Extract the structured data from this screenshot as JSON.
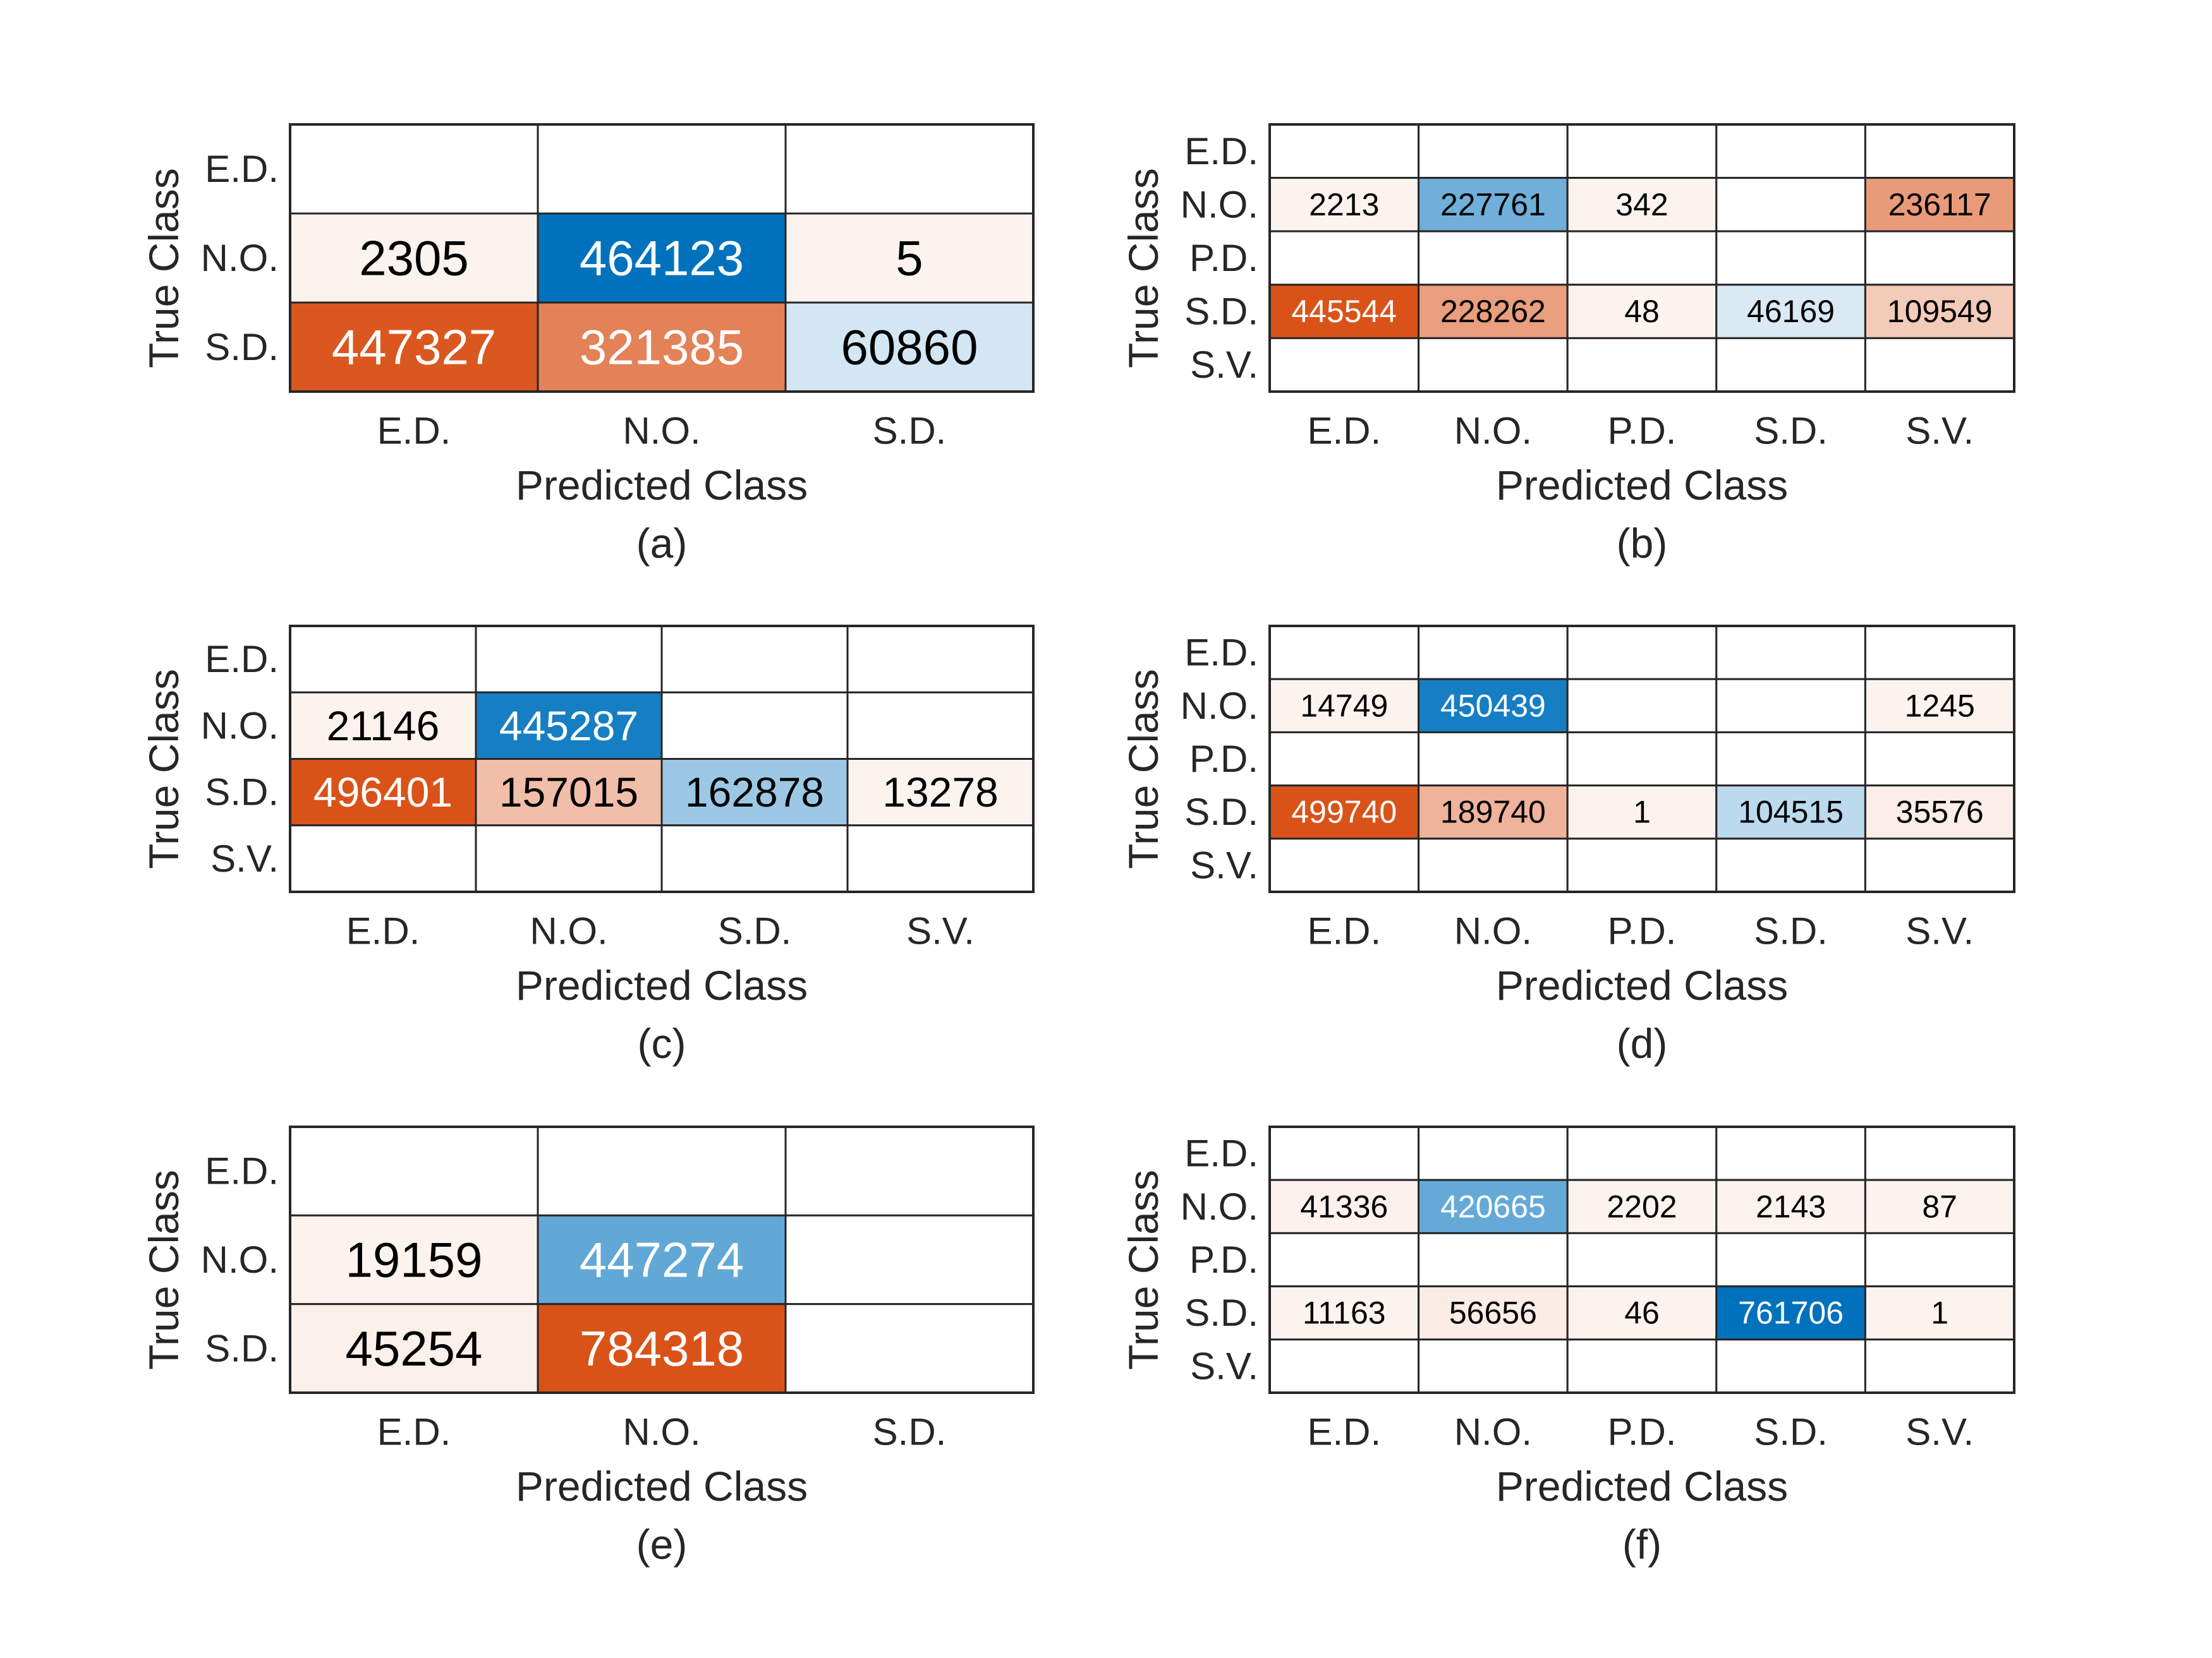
{
  "figure": {
    "panels": [
      {
        "id": "a",
        "caption": "(a)"
      },
      {
        "id": "b",
        "caption": "(b)"
      },
      {
        "id": "c",
        "caption": "(c)"
      },
      {
        "id": "d",
        "caption": "(d)"
      },
      {
        "id": "e",
        "caption": "(e)"
      },
      {
        "id": "f",
        "caption": "(f)"
      }
    ]
  },
  "colors": {
    "blue_max": "#0072bd",
    "orange_max": "#d95319",
    "white": "#ffffff",
    "text_dark": "#000000",
    "text_light": "#ffffff",
    "grid": "#262626"
  },
  "chart_data": [
    {
      "type": "heatmap",
      "panel": "a",
      "caption": "(a)",
      "xlabel": "Predicted Class",
      "ylabel": "True Class",
      "x_categories": [
        "E.D.",
        "N.O.",
        "S.D."
      ],
      "y_categories": [
        "E.D.",
        "N.O.",
        "S.D."
      ],
      "values": [
        [
          null,
          null,
          null
        ],
        [
          2305,
          464123,
          5
        ],
        [
          447327,
          321385,
          60860
        ]
      ]
    },
    {
      "type": "heatmap",
      "panel": "b",
      "caption": "(b)",
      "xlabel": "Predicted Class",
      "ylabel": "True Class",
      "x_categories": [
        "E.D.",
        "N.O.",
        "P.D.",
        "S.D.",
        "S.V."
      ],
      "y_categories": [
        "E.D.",
        "N.O.",
        "P.D.",
        "S.D.",
        "S.V."
      ],
      "values": [
        [
          null,
          null,
          null,
          null,
          null
        ],
        [
          2213,
          227761,
          342,
          null,
          236117
        ],
        [
          null,
          null,
          null,
          null,
          null
        ],
        [
          445544,
          228262,
          48,
          46169,
          109549
        ],
        [
          null,
          null,
          null,
          null,
          null
        ]
      ]
    },
    {
      "type": "heatmap",
      "panel": "c",
      "caption": "(c)",
      "xlabel": "Predicted Class",
      "ylabel": "True Class",
      "x_categories": [
        "E.D.",
        "N.O.",
        "S.D.",
        "S.V."
      ],
      "y_categories": [
        "E.D.",
        "N.O.",
        "S.D.",
        "S.V."
      ],
      "values": [
        [
          null,
          null,
          null,
          null
        ],
        [
          21146,
          445287,
          null,
          null
        ],
        [
          496401,
          157015,
          162878,
          13278
        ],
        [
          null,
          null,
          null,
          null
        ]
      ]
    },
    {
      "type": "heatmap",
      "panel": "d",
      "caption": "(d)",
      "xlabel": "Predicted Class",
      "ylabel": "True Class",
      "x_categories": [
        "E.D.",
        "N.O.",
        "P.D.",
        "S.D.",
        "S.V."
      ],
      "y_categories": [
        "E.D.",
        "N.O.",
        "P.D.",
        "S.D.",
        "S.V."
      ],
      "values": [
        [
          null,
          null,
          null,
          null,
          null
        ],
        [
          14749,
          450439,
          null,
          null,
          1245
        ],
        [
          null,
          null,
          null,
          null,
          null
        ],
        [
          499740,
          189740,
          1,
          104515,
          35576
        ],
        [
          null,
          null,
          null,
          null,
          null
        ]
      ]
    },
    {
      "type": "heatmap",
      "panel": "e",
      "caption": "(e)",
      "xlabel": "Predicted Class",
      "ylabel": "True Class",
      "x_categories": [
        "E.D.",
        "N.O.",
        "S.D."
      ],
      "y_categories": [
        "E.D.",
        "N.O.",
        "S.D."
      ],
      "values": [
        [
          null,
          null,
          null
        ],
        [
          19159,
          447274,
          null
        ],
        [
          45254,
          784318,
          null
        ]
      ]
    },
    {
      "type": "heatmap",
      "panel": "f",
      "caption": "(f)",
      "xlabel": "Predicted Class",
      "ylabel": "True Class",
      "x_categories": [
        "E.D.",
        "N.O.",
        "P.D.",
        "S.D.",
        "S.V."
      ],
      "y_categories": [
        "E.D.",
        "N.O.",
        "P.D.",
        "S.D.",
        "S.V."
      ],
      "values": [
        [
          null,
          null,
          null,
          null,
          null
        ],
        [
          41336,
          420665,
          2202,
          2143,
          87
        ],
        [
          null,
          null,
          null,
          null,
          null
        ],
        [
          11163,
          56656,
          46,
          761706,
          1
        ],
        [
          null,
          null,
          null,
          null,
          null
        ]
      ]
    }
  ]
}
